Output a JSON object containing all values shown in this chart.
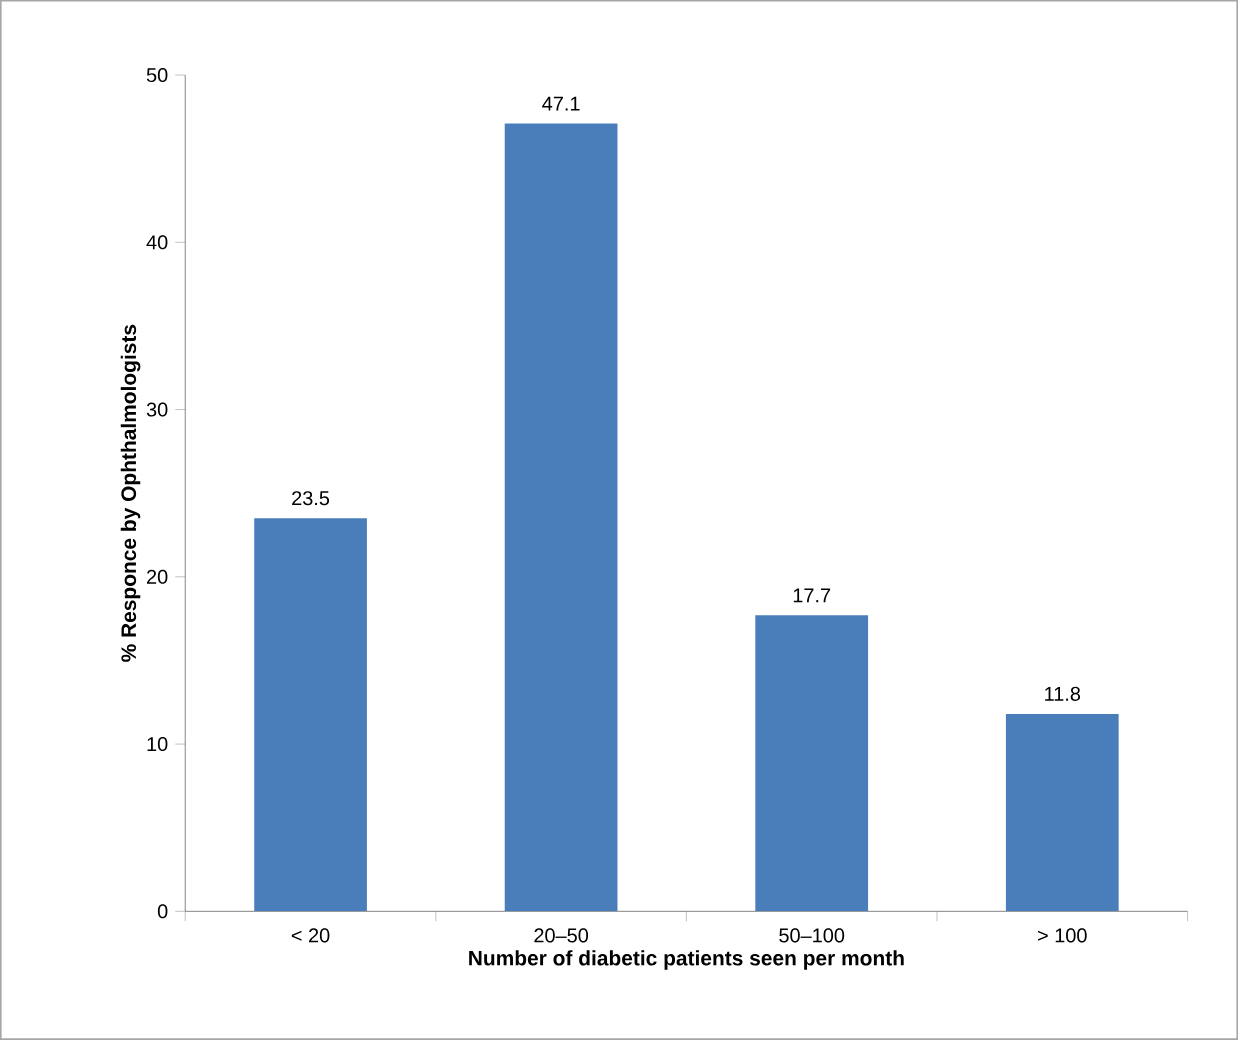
{
  "chart_data": {
    "type": "bar",
    "xlabel": "Number of diabetic  patients seen per month",
    "ylabel": "% Responce by Ophthalmologists",
    "categories": [
      "< 20",
      "20–50",
      "50–100",
      "> 100"
    ],
    "values": [
      23.5,
      47.1,
      17.7,
      11.8
    ],
    "color": "#4a7ebb",
    "ylim": [
      0,
      50
    ],
    "yticks": [
      0,
      10,
      20,
      30,
      40,
      50
    ],
    "data_labels": true
  }
}
